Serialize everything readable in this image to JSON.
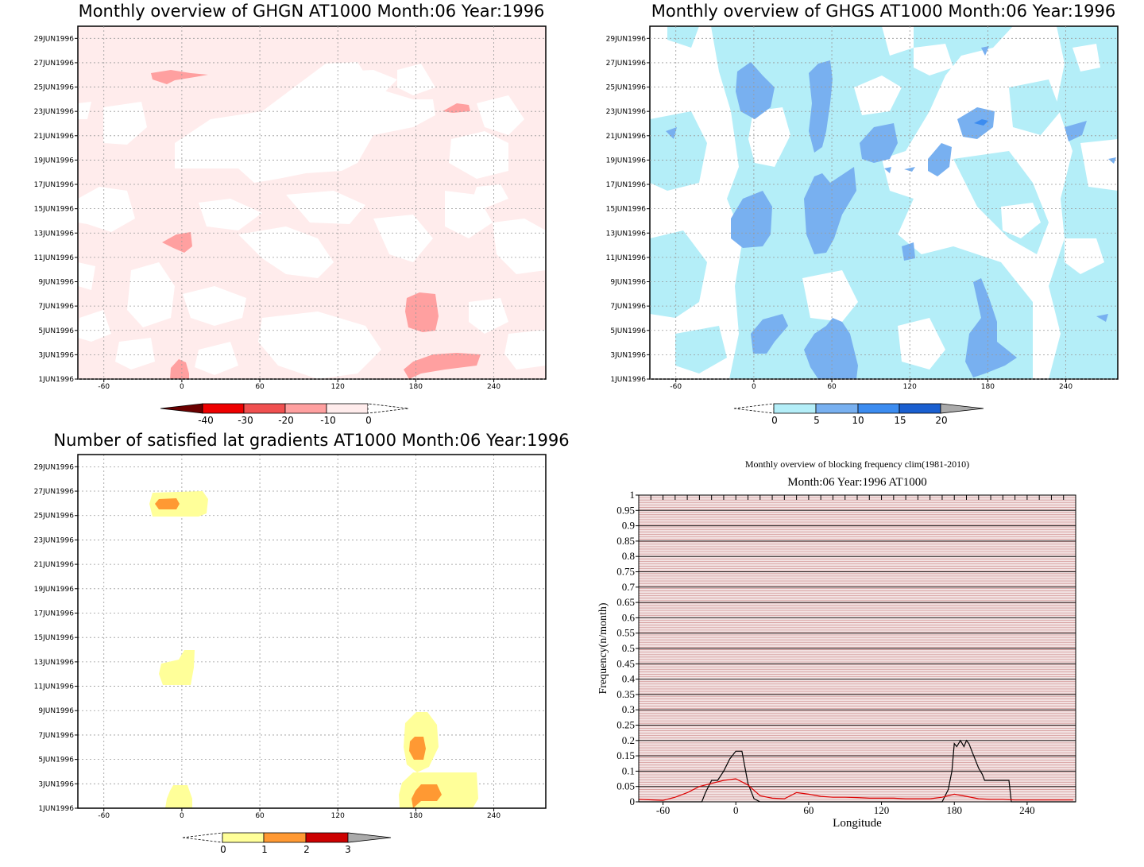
{
  "colors": {
    "neg1": "#ffecec",
    "neg2": "#ffa0a0",
    "neg3": "#f05050",
    "neg4": "#ee0000",
    "neg5": "#6a0000",
    "pos1": "#b4eef8",
    "pos2": "#78b0f0",
    "pos3": "#3c8cf0",
    "pos4": "#1a5fd0",
    "over": "#aaaaaa",
    "cnt1": "#ffff99",
    "cnt2": "#ff9933",
    "cnt3": "#cc0000",
    "fill_stripe": "#d49a9a",
    "black_line": "#000000",
    "red_line": "#dd0000"
  },
  "chart_data": [
    {
      "type": "heatmap",
      "title": "Monthly overview of GHGN AT1000 Month:06 Year:1996",
      "x_ticks": [
        "-60",
        "0",
        "60",
        "120",
        "180",
        "240"
      ],
      "y_ticks": [
        "1JUN1996",
        "3JUN1996",
        "5JUN1996",
        "7JUN1996",
        "9JUN1996",
        "11JUN1996",
        "13JUN1996",
        "15JUN1996",
        "17JUN1996",
        "19JUN1996",
        "21JUN1996",
        "23JUN1996",
        "25JUN1996",
        "27JUN1996",
        "29JUN1996"
      ],
      "xlim": [
        -80,
        280
      ],
      "ylim": [
        1,
        30
      ],
      "colorbar_labels": [
        "-40",
        "-30",
        "-20",
        "-10",
        "0"
      ]
    },
    {
      "type": "heatmap",
      "title": "Monthly overview of GHGS AT1000 Month:06 Year:1996",
      "x_ticks": [
        "-60",
        "0",
        "60",
        "120",
        "180",
        "240"
      ],
      "y_ticks": [
        "1JUN1996",
        "3JUN1996",
        "5JUN1996",
        "7JUN1996",
        "9JUN1996",
        "11JUN1996",
        "13JUN1996",
        "15JUN1996",
        "17JUN1996",
        "19JUN1996",
        "21JUN1996",
        "23JUN1996",
        "25JUN1996",
        "27JUN1996",
        "29JUN1996"
      ],
      "xlim": [
        -80,
        280
      ],
      "ylim": [
        1,
        30
      ],
      "colorbar_labels": [
        "0",
        "5",
        "10",
        "15",
        "20"
      ]
    },
    {
      "type": "heatmap",
      "title": "Number of satisfied lat gradients AT1000 Month:06 Year:1996",
      "x_ticks": [
        "-60",
        "0",
        "60",
        "120",
        "180",
        "240"
      ],
      "y_ticks": [
        "1JUN1996",
        "3JUN1996",
        "5JUN1996",
        "7JUN1996",
        "9JUN1996",
        "11JUN1996",
        "13JUN1996",
        "15JUN1996",
        "17JUN1996",
        "19JUN1996",
        "21JUN1996",
        "23JUN1996",
        "25JUN1996",
        "27JUN1996",
        "29JUN1996"
      ],
      "xlim": [
        -80,
        280
      ],
      "ylim": [
        1,
        30
      ],
      "colorbar_labels": [
        "0",
        "1",
        "2",
        "3"
      ]
    },
    {
      "type": "line",
      "title": "Monthly overview of blocking frequency clim(1981-2010)",
      "subtitle": "Month:06 Year:1996  AT1000",
      "xlabel": "Longitude",
      "ylabel": "Frequency(n/month)",
      "x_ticks": [
        "-60",
        "0",
        "60",
        "120",
        "180",
        "240"
      ],
      "y_ticks": [
        "0",
        "0.05",
        "0.1",
        "0.15",
        "0.2",
        "0.25",
        "0.3",
        "0.35",
        "0.4",
        "0.45",
        "0.5",
        "0.55",
        "0.6",
        "0.65",
        "0.7",
        "0.75",
        "0.8",
        "0.85",
        "0.9",
        "0.95",
        "1"
      ],
      "xlim": [
        -80,
        280
      ],
      "ylim": [
        0,
        1
      ],
      "series": [
        {
          "name": "black",
          "x": [
            -80,
            -28,
            -25,
            -20,
            -15,
            -10,
            -5,
            0,
            5,
            10,
            15,
            20,
            160,
            170,
            175,
            178,
            180,
            182,
            185,
            188,
            190,
            192,
            195,
            200,
            203,
            205,
            210,
            215,
            220,
            225,
            227,
            280
          ],
          "y": [
            0,
            0,
            0.03,
            0.07,
            0.07,
            0.1,
            0.14,
            0.165,
            0.165,
            0.06,
            0.01,
            0,
            0,
            0,
            0.04,
            0.1,
            0.19,
            0.18,
            0.2,
            0.18,
            0.2,
            0.19,
            0.16,
            0.11,
            0.09,
            0.07,
            0.07,
            0.07,
            0.07,
            0.07,
            0,
            0
          ]
        },
        {
          "name": "red",
          "x": [
            -80,
            -60,
            -50,
            -40,
            -30,
            -20,
            -10,
            0,
            10,
            20,
            30,
            40,
            50,
            60,
            70,
            80,
            90,
            100,
            110,
            120,
            130,
            140,
            150,
            160,
            170,
            180,
            190,
            200,
            210,
            220,
            230,
            240,
            250,
            260,
            270,
            278
          ],
          "y": [
            0.008,
            0.005,
            0.015,
            0.03,
            0.05,
            0.06,
            0.07,
            0.075,
            0.055,
            0.02,
            0.012,
            0.01,
            0.03,
            0.025,
            0.018,
            0.015,
            0.015,
            0.014,
            0.012,
            0.012,
            0.012,
            0.01,
            0.01,
            0.01,
            0.015,
            0.025,
            0.018,
            0.01,
            0.008,
            0.008,
            0.006,
            0.006,
            0.006,
            0.006,
            0.006,
            0.006
          ]
        }
      ]
    }
  ]
}
